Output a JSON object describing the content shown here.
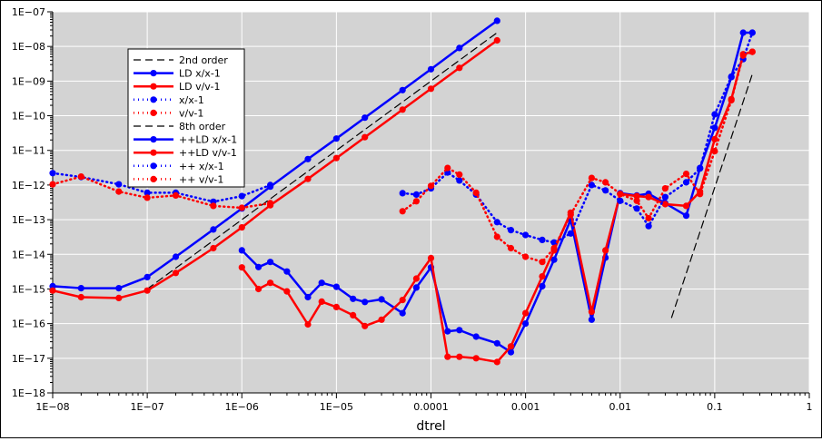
{
  "chart_data": {
    "type": "line",
    "title": "",
    "xlabel": "dtrel",
    "ylabel": "",
    "x_scale": "log",
    "y_scale": "log",
    "xlim": [
      1e-08,
      1
    ],
    "ylim": [
      1e-18,
      1e-07
    ],
    "grid": true,
    "legend_position": "upper-left",
    "plot_background": "#d3d3d3",
    "x_ticks": [
      {
        "value": 1e-08,
        "label": "1E−08"
      },
      {
        "value": 1e-07,
        "label": "1E−07"
      },
      {
        "value": 1e-06,
        "label": "1E−06"
      },
      {
        "value": 1e-05,
        "label": "1E−05"
      },
      {
        "value": 0.0001,
        "label": "0.0001"
      },
      {
        "value": 0.001,
        "label": "0.001"
      },
      {
        "value": 0.01,
        "label": "0.01"
      },
      {
        "value": 0.1,
        "label": "0.1"
      },
      {
        "value": 1,
        "label": "1"
      }
    ],
    "y_ticks": [
      {
        "value": 1e-07,
        "label": "1E−07"
      },
      {
        "value": 1e-08,
        "label": "1E−08"
      },
      {
        "value": 1e-09,
        "label": "1E−09"
      },
      {
        "value": 1e-10,
        "label": "1E−10"
      },
      {
        "value": 1e-11,
        "label": "1E−11"
      },
      {
        "value": 1e-12,
        "label": "1E−12"
      },
      {
        "value": 1e-13,
        "label": "1E−13"
      },
      {
        "value": 1e-14,
        "label": "1E−14"
      },
      {
        "value": 1e-15,
        "label": "1E−15"
      },
      {
        "value": 1e-16,
        "label": "1E−16"
      },
      {
        "value": 1e-17,
        "label": "1E−17"
      },
      {
        "value": 1e-18,
        "label": "1E−18"
      }
    ],
    "series": [
      {
        "name": "2nd order",
        "color": "#000000",
        "style": "dashed",
        "marker": false,
        "x": [
          1e-07,
          0.0005
        ],
        "y": [
          1e-15,
          2.5e-08
        ]
      },
      {
        "name": "LD x/x-1",
        "color": "#0000ff",
        "style": "solid",
        "marker": true,
        "x": [
          1e-08,
          2e-08,
          5e-08,
          1e-07,
          2e-07,
          5e-07,
          1e-06,
          2e-06,
          5e-06,
          1e-05,
          2e-05,
          5e-05,
          0.0001,
          0.0002,
          0.0005
        ],
        "y": [
          1.2e-15,
          1.05e-15,
          1.05e-15,
          2.2e-15,
          8.5e-15,
          5.2e-14,
          2.1e-13,
          9e-13,
          5.6e-12,
          2.2e-11,
          8.8e-11,
          5.5e-10,
          2.2e-09,
          9e-09,
          5.5e-08
        ]
      },
      {
        "name": "LD v/v-1",
        "color": "#ff0000",
        "style": "solid",
        "marker": true,
        "x": [
          1e-08,
          2e-08,
          5e-08,
          1e-07,
          2e-07,
          5e-07,
          1e-06,
          2e-06,
          5e-06,
          1e-05,
          2e-05,
          5e-05,
          0.0001,
          0.0002,
          0.0005
        ],
        "y": [
          9e-16,
          5.8e-16,
          5.5e-16,
          9e-16,
          2.9e-15,
          1.5e-14,
          6e-14,
          2.6e-13,
          1.5e-12,
          6e-12,
          2.4e-11,
          1.5e-10,
          6e-10,
          2.4e-09,
          1.5e-08
        ]
      },
      {
        "name": "x/x-1",
        "color": "#0000ff",
        "style": "dotted",
        "marker": true,
        "x": [
          1e-08,
          2e-08,
          5e-08,
          1e-07,
          2e-07,
          5e-07,
          1e-06,
          2e-06
        ],
        "y": [
          2.2e-12,
          1.7e-12,
          1.05e-12,
          6e-13,
          6e-13,
          3.3e-13,
          4.8e-13,
          1e-12
        ]
      },
      {
        "name": "v/v-1",
        "color": "#ff0000",
        "style": "dotted",
        "marker": true,
        "x": [
          1e-08,
          2e-08,
          5e-08,
          1e-07,
          2e-07,
          5e-07,
          1e-06,
          2e-06
        ],
        "y": [
          1.05e-12,
          1.75e-12,
          6.5e-13,
          4.3e-13,
          5e-13,
          2.5e-13,
          2.2e-13,
          3e-13
        ]
      },
      {
        "name": "8th order",
        "color": "#000000",
        "style": "dashed",
        "marker": false,
        "x": [
          0.035,
          0.25
        ],
        "y": [
          1.5e-16,
          1.6e-09
        ]
      },
      {
        "name": "++LD x/x-1",
        "color": "#0000ff",
        "style": "solid",
        "marker": true,
        "x": [
          1e-06,
          1.5e-06,
          2e-06,
          3e-06,
          5e-06,
          7e-06,
          1e-05,
          1.5e-05,
          2e-05,
          3e-05,
          5e-05,
          7e-05,
          0.0001,
          0.00015,
          0.0002,
          0.0003,
          0.0005,
          0.0007,
          0.001,
          0.0015,
          0.002,
          0.003,
          0.005,
          0.007,
          0.01,
          0.015,
          0.02,
          0.03,
          0.05,
          0.07,
          0.1,
          0.15,
          0.2,
          0.25
        ],
        "y": [
          1.3e-14,
          4.3e-15,
          6e-15,
          3.2e-15,
          5.8e-16,
          1.5e-15,
          1.15e-15,
          5.2e-16,
          4.2e-16,
          5e-16,
          2e-16,
          1.1e-15,
          4.2e-15,
          6e-17,
          6.5e-17,
          4.2e-17,
          2.7e-17,
          1.5e-17,
          1e-16,
          1.2e-15,
          7e-15,
          1e-13,
          1.3e-16,
          8e-15,
          5.8e-13,
          5e-13,
          5.6e-13,
          3e-13,
          1.3e-13,
          3.1e-12,
          4.5e-11,
          1.3e-09,
          2.5e-08,
          2.5e-08
        ]
      },
      {
        "name": "++LD v/v-1",
        "color": "#ff0000",
        "style": "solid",
        "marker": true,
        "x": [
          1e-06,
          1.5e-06,
          2e-06,
          3e-06,
          5e-06,
          7e-06,
          1e-05,
          1.5e-05,
          2e-05,
          3e-05,
          5e-05,
          7e-05,
          0.0001,
          0.00015,
          0.0002,
          0.0003,
          0.0005,
          0.0007,
          0.001,
          0.0015,
          0.002,
          0.003,
          0.005,
          0.007,
          0.01,
          0.015,
          0.02,
          0.03,
          0.05,
          0.07,
          0.1,
          0.15,
          0.2,
          0.25
        ],
        "y": [
          4.2e-15,
          1e-15,
          1.5e-15,
          8.5e-16,
          9.5e-17,
          4.3e-16,
          3e-16,
          1.75e-16,
          8.5e-17,
          1.3e-16,
          4.8e-16,
          2e-15,
          7.8e-15,
          1.1e-17,
          1.1e-17,
          1e-17,
          7.8e-18,
          2.2e-17,
          2e-16,
          2.3e-15,
          1.3e-14,
          1.6e-13,
          2.2e-16,
          1.3e-14,
          5.5e-13,
          4.8e-13,
          4.5e-13,
          2.8e-13,
          2.5e-13,
          6.5e-13,
          2.1e-11,
          3e-10,
          6e-09,
          7e-09
        ]
      },
      {
        "name": "++ x/x-1",
        "color": "#0000ff",
        "style": "dotted",
        "marker": true,
        "x": [
          5e-05,
          7e-05,
          0.0001,
          0.00015,
          0.0002,
          0.0003,
          0.0005,
          0.0007,
          0.001,
          0.0015,
          0.002,
          0.003,
          0.005,
          0.007,
          0.01,
          0.015,
          0.02,
          0.03,
          0.05,
          0.07,
          0.1,
          0.15,
          0.2,
          0.25
        ],
        "y": [
          5.8e-13,
          5.3e-13,
          8e-13,
          2.3e-12,
          1.35e-12,
          5.3e-13,
          8.5e-14,
          5e-14,
          3.6e-14,
          2.6e-14,
          2.2e-14,
          4e-14,
          1e-12,
          7e-13,
          3.5e-13,
          2.1e-13,
          6.5e-14,
          4.5e-13,
          1.2e-12,
          3e-12,
          1.1e-10,
          1.35e-09,
          4.3e-09,
          2.5e-08
        ]
      },
      {
        "name": "++ v/v-1",
        "color": "#ff0000",
        "style": "dotted",
        "marker": true,
        "x": [
          5e-05,
          7e-05,
          0.0001,
          0.00015,
          0.0002,
          0.0003,
          0.0005,
          0.0007,
          0.001,
          0.0015,
          0.002,
          0.003,
          0.005,
          0.007,
          0.01,
          0.015,
          0.02,
          0.03,
          0.05,
          0.07,
          0.1,
          0.15,
          0.2,
          0.25
        ],
        "y": [
          1.75e-13,
          3.4e-13,
          9.5e-13,
          3.1e-12,
          2e-12,
          6e-13,
          3.2e-14,
          1.5e-14,
          8.5e-15,
          6e-15,
          1.5e-14,
          1.4e-13,
          1.6e-12,
          1.2e-12,
          5.5e-13,
          3.5e-13,
          1.1e-13,
          8e-13,
          2.1e-12,
          5.5e-13,
          9.5e-12,
          2.8e-10,
          5.5e-09,
          7e-09
        ]
      }
    ]
  }
}
